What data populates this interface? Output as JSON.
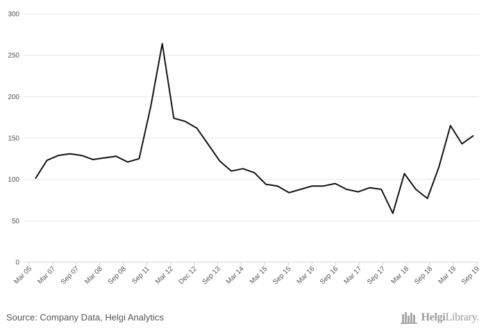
{
  "chart_data": {
    "type": "line",
    "title": "",
    "xlabel": "",
    "ylabel": "",
    "ylim": [
      0,
      300
    ],
    "yticks": [
      0,
      50,
      100,
      150,
      200,
      250,
      300
    ],
    "grid": true,
    "legend": "none",
    "line_color": "#111111",
    "x_tick_labels": [
      "Mar 05",
      "Mar 07",
      "Sep 07",
      "Mar 08",
      "Sep 08",
      "Sep 11",
      "Mar 12",
      "Dec 12",
      "Sep 13",
      "Mar 14",
      "Mar 15",
      "Sep 15",
      "Mar 16",
      "Sep 16",
      "Mar 17",
      "Sep 17",
      "Mar 18",
      "Sep 18",
      "Mar 19",
      "Sep 19"
    ],
    "series": [
      {
        "values": [
          101,
          123,
          129,
          131,
          129,
          124,
          126,
          128,
          121,
          125,
          188,
          264,
          174,
          170,
          162,
          142,
          122,
          110,
          113,
          108,
          94,
          92,
          84,
          88,
          92,
          92,
          95,
          88,
          85,
          90,
          88,
          59,
          107,
          88,
          77,
          115,
          165,
          143,
          153
        ]
      }
    ]
  },
  "footer": {
    "source": "Source: Company Data, Helgi Analytics",
    "brand_bold": "Helgi",
    "brand_light": "Library."
  }
}
